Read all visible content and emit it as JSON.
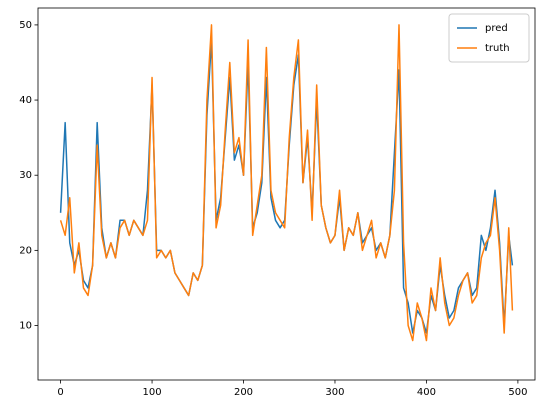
{
  "chart_data": {
    "type": "line",
    "x": [
      0,
      5,
      10,
      15,
      20,
      25,
      30,
      35,
      40,
      45,
      50,
      55,
      60,
      65,
      70,
      75,
      80,
      85,
      90,
      95,
      100,
      105,
      110,
      115,
      120,
      125,
      130,
      135,
      140,
      145,
      150,
      155,
      160,
      165,
      170,
      175,
      180,
      185,
      190,
      195,
      200,
      205,
      210,
      215,
      220,
      225,
      230,
      235,
      240,
      245,
      250,
      255,
      260,
      265,
      270,
      275,
      280,
      285,
      290,
      295,
      300,
      305,
      310,
      315,
      320,
      325,
      330,
      335,
      340,
      345,
      350,
      355,
      360,
      365,
      370,
      375,
      380,
      385,
      390,
      395,
      400,
      405,
      410,
      415,
      420,
      425,
      430,
      435,
      440,
      445,
      450,
      455,
      460,
      465,
      470,
      475,
      480,
      485,
      490,
      494
    ],
    "series": [
      {
        "name": "pred",
        "color": "#1f77b4",
        "values": [
          25,
          37,
          21,
          18,
          20,
          16,
          15,
          18,
          37,
          23,
          19,
          21,
          19,
          24,
          24,
          22,
          24,
          23,
          22,
          28,
          42,
          20,
          20,
          19,
          20,
          17,
          16,
          15,
          14,
          17,
          16,
          18,
          38,
          48,
          24,
          27,
          35,
          43,
          32,
          34,
          30,
          45,
          23,
          25,
          29,
          43,
          27,
          24,
          23,
          24,
          34,
          42,
          46,
          29,
          35,
          25,
          40,
          26,
          23,
          21,
          22,
          27,
          20,
          23,
          22,
          25,
          21,
          22,
          23,
          20,
          21,
          19,
          22,
          33,
          44,
          15,
          13,
          9,
          12,
          11,
          9,
          14,
          12,
          18,
          14,
          11,
          12,
          15,
          16,
          17,
          14,
          15,
          22,
          20,
          23,
          28,
          21,
          10,
          22,
          18
        ]
      },
      {
        "name": "truth",
        "color": "#ff7f0e",
        "values": [
          24,
          22,
          27,
          17,
          21,
          15,
          14,
          18,
          34,
          22,
          19,
          21,
          19,
          23,
          24,
          22,
          24,
          23,
          22,
          24,
          43,
          19,
          20,
          19,
          20,
          17,
          16,
          15,
          14,
          17,
          16,
          18,
          40,
          50,
          23,
          26,
          36,
          45,
          33,
          35,
          30,
          48,
          22,
          26,
          30,
          47,
          28,
          25,
          24,
          23,
          35,
          43,
          48,
          29,
          36,
          24,
          42,
          26,
          23,
          21,
          22,
          28,
          20,
          23,
          22,
          25,
          20,
          22,
          24,
          19,
          21,
          19,
          22,
          28,
          50,
          21,
          10,
          8,
          13,
          11,
          8,
          15,
          12,
          19,
          13,
          10,
          11,
          14,
          16,
          17,
          13,
          14,
          19,
          21,
          22,
          27,
          20,
          9,
          23,
          12
        ]
      }
    ],
    "xlim": [
      -24.7,
      518.7
    ],
    "ylim": [
      2.75,
      52.25
    ],
    "xticks": [
      0,
      100,
      200,
      300,
      400,
      500
    ],
    "yticks": [
      10,
      20,
      30,
      40,
      50
    ],
    "legend": "upper right"
  }
}
